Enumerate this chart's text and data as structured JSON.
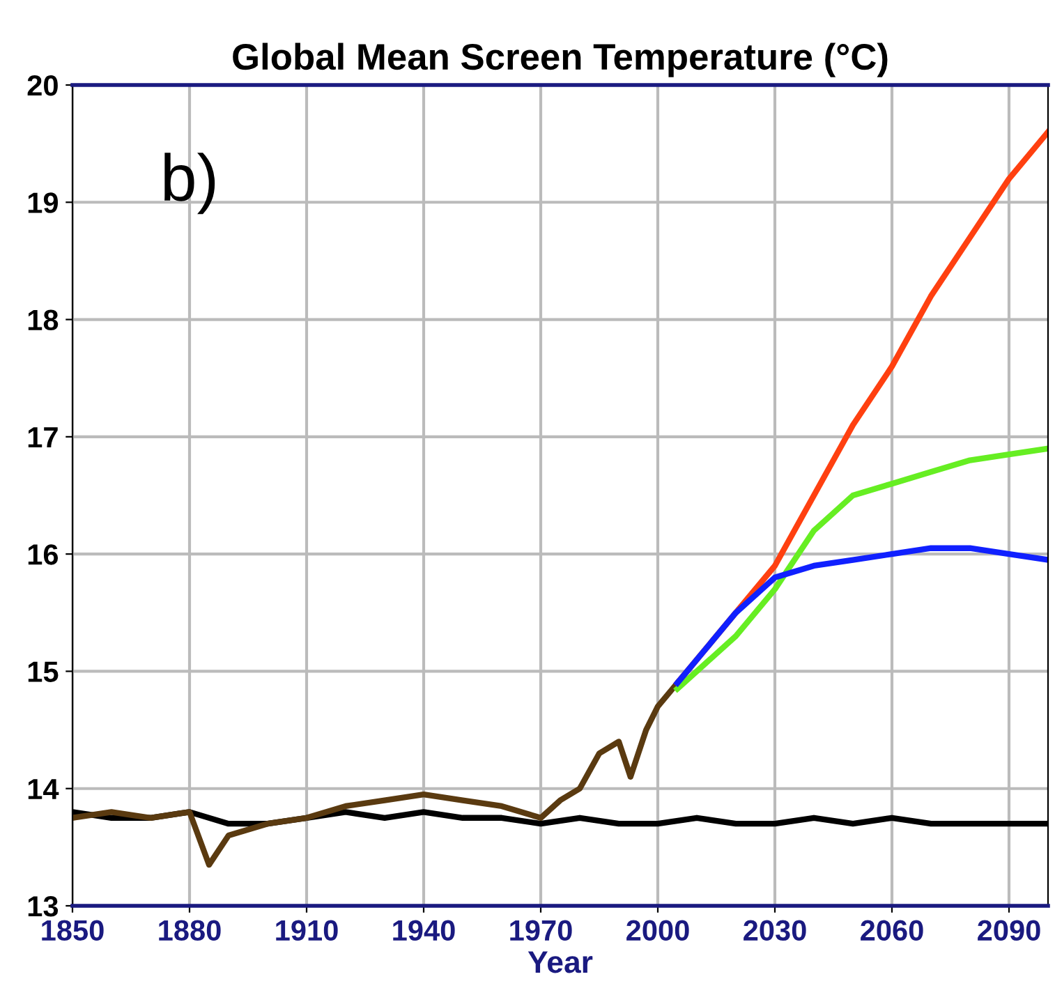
{
  "chart_data": {
    "type": "line",
    "title": "Global Mean Screen Temperature (°C)",
    "xlabel": "Year",
    "annotations": [
      "b)"
    ],
    "xlim": [
      1850,
      2100
    ],
    "ylim": [
      13,
      20
    ],
    "xticks": [
      1850,
      1880,
      1910,
      1940,
      1970,
      2000,
      2030,
      2060,
      2090
    ],
    "yticks": [
      13,
      14,
      15,
      16,
      17,
      18,
      19,
      20
    ],
    "grid": true,
    "legend": false,
    "marker": "none",
    "line_style": "solid",
    "series": [
      {
        "color": "#000000",
        "x": [
          1850,
          1860,
          1870,
          1880,
          1890,
          1900,
          1910,
          1920,
          1930,
          1940,
          1950,
          1960,
          1970,
          1980,
          1990,
          2000,
          2010,
          2020,
          2030,
          2040,
          2050,
          2060,
          2070,
          2080,
          2090,
          2100
        ],
        "values": [
          13.8,
          13.75,
          13.75,
          13.8,
          13.7,
          13.7,
          13.75,
          13.8,
          13.75,
          13.8,
          13.75,
          13.75,
          13.7,
          13.75,
          13.7,
          13.7,
          13.75,
          13.7,
          13.7,
          13.75,
          13.7,
          13.75,
          13.7,
          13.7,
          13.7,
          13.7
        ]
      },
      {
        "color": "#5a3a10",
        "x": [
          1850,
          1860,
          1870,
          1880,
          1885,
          1890,
          1900,
          1910,
          1920,
          1930,
          1940,
          1950,
          1960,
          1970,
          1975,
          1980,
          1985,
          1990,
          1993,
          1997,
          2000,
          2005
        ],
        "values": [
          13.75,
          13.8,
          13.75,
          13.8,
          13.35,
          13.6,
          13.7,
          13.75,
          13.85,
          13.9,
          13.95,
          13.9,
          13.85,
          13.75,
          13.9,
          14.0,
          14.3,
          14.4,
          14.1,
          14.5,
          14.7,
          14.9
        ]
      },
      {
        "color": "#ff4010",
        "x": [
          2005,
          2020,
          2030,
          2040,
          2050,
          2060,
          2070,
          2080,
          2090,
          2100
        ],
        "values": [
          14.9,
          15.5,
          15.9,
          16.5,
          17.1,
          17.6,
          18.2,
          18.7,
          19.2,
          19.6
        ]
      },
      {
        "color": "#66ee22",
        "x": [
          2005,
          2020,
          2030,
          2040,
          2050,
          2060,
          2070,
          2080,
          2090,
          2100
        ],
        "values": [
          14.85,
          15.3,
          15.7,
          16.2,
          16.5,
          16.6,
          16.7,
          16.8,
          16.85,
          16.9
        ]
      },
      {
        "color": "#1020ff",
        "x": [
          2005,
          2020,
          2030,
          2040,
          2050,
          2060,
          2070,
          2080,
          2090,
          2100
        ],
        "values": [
          14.9,
          15.5,
          15.8,
          15.9,
          15.95,
          16.0,
          16.05,
          16.05,
          16.0,
          15.95
        ]
      }
    ]
  }
}
